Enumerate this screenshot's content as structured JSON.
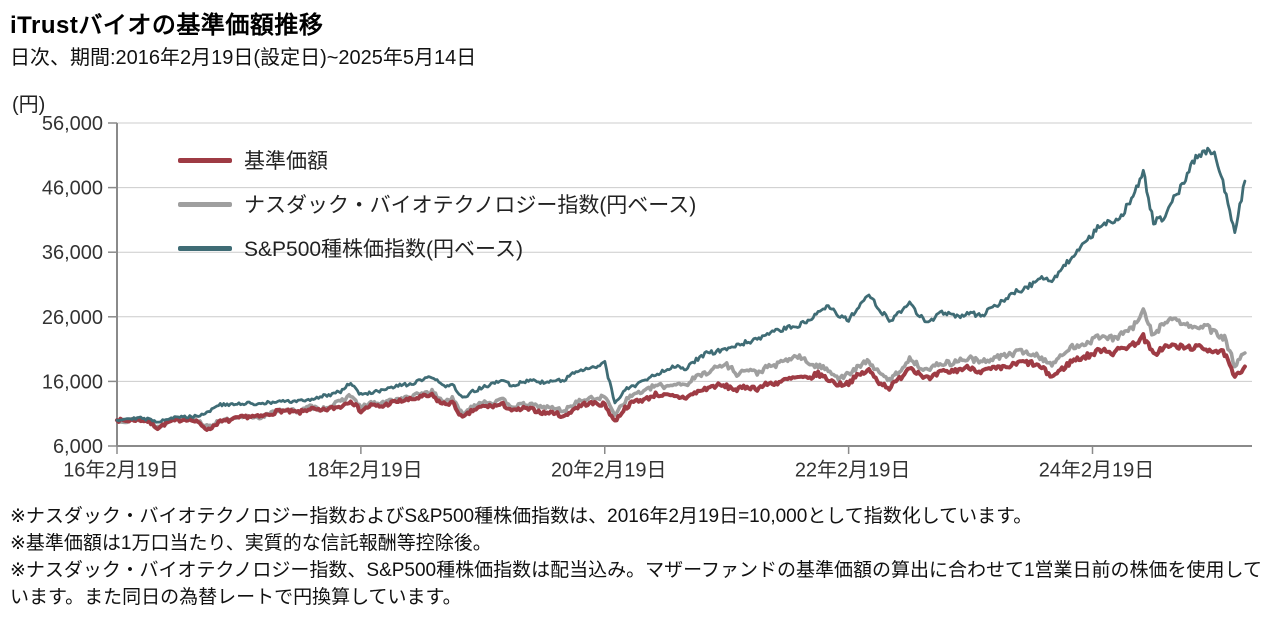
{
  "header": {
    "title": "iTrustバイオの基準価額推移",
    "subtitle": "日次、期間:2016年2月19日(設定日)~2025年5月14日"
  },
  "y_axis": {
    "unit": "(円)",
    "ticks": [
      {
        "value": 56000,
        "label": "56,000"
      },
      {
        "value": 46000,
        "label": "46,000"
      },
      {
        "value": 36000,
        "label": "36,000"
      },
      {
        "value": 26000,
        "label": "26,000"
      },
      {
        "value": 16000,
        "label": "16,000"
      },
      {
        "value": 6000,
        "label": "6,000"
      }
    ]
  },
  "x_axis": {
    "ticks": [
      {
        "month": 0,
        "label": "16年2月19日"
      },
      {
        "month": 24,
        "label": "18年2月19日"
      },
      {
        "month": 48,
        "label": "20年2月19日"
      },
      {
        "month": 72,
        "label": "22年2月19日"
      },
      {
        "month": 96,
        "label": "24年2月19日"
      }
    ]
  },
  "footnotes": [
    "※ナスダック・バイオテクノロジー指数およびS&P500種株価指数は、2016年2月19日=10,000として指数化しています。",
    "※基準価額は1万口当たり、実質的な信託報酬等控除後。",
    "※ナスダック・バイオテクノロジー指数、S&P500種株価指数は配当込み。マザーファンドの基準価額の算出に合わせて1営業日前の株価を使用しています。また同日の為替レートで円換算しています。"
  ],
  "chart_data": {
    "type": "line",
    "title": "iTrustバイオの基準価額推移",
    "xlabel": "",
    "ylabel": "円",
    "ylim": [
      6000,
      56000
    ],
    "x_start": "2016-02",
    "x_end": "2025-05",
    "x_freq": "monthly",
    "grid": "horizontal",
    "legend_position": "top-left-inside",
    "series": [
      {
        "name": "基準価額",
        "color": "#9e3b44",
        "values": [
          10000,
          9900,
          10100,
          9850,
          8800,
          9650,
          10000,
          10200,
          9600,
          8500,
          9700,
          9950,
          10350,
          10600,
          10500,
          10900,
          11500,
          11300,
          11200,
          11800,
          11400,
          11800,
          12100,
          13100,
          11400,
          12300,
          12100,
          12700,
          13000,
          13200,
          13600,
          13800,
          12500,
          12700,
          10300,
          11500,
          12100,
          12200,
          12400,
          11400,
          11800,
          11600,
          11100,
          11200,
          10500,
          11800,
          12500,
          12600,
          12400,
          9800,
          11900,
          13000,
          13200,
          14000,
          13800,
          13600,
          13500,
          14300,
          14900,
          15400,
          15200,
          14700,
          15200,
          14900,
          15600,
          15800,
          16300,
          16600,
          16400,
          17200,
          16300,
          15500,
          15800,
          17000,
          17700,
          15900,
          15000,
          16400,
          18300,
          17200,
          16300,
          17400,
          17500,
          17900,
          18200,
          17500,
          17900,
          18000,
          18400,
          19000,
          18800,
          18100,
          16700,
          17900,
          19200,
          19700,
          20200,
          21100,
          20400,
          21200,
          21700,
          22900,
          20100,
          21300,
          21500,
          21200,
          21300,
          21100,
          20800,
          20300,
          16500,
          18300
        ]
      },
      {
        "name": "ナスダック・バイオテクノロジー指数(円ベース)",
        "color": "#9f9f9f",
        "values": [
          10000,
          9900,
          10150,
          9950,
          8900,
          9800,
          10200,
          10300,
          9900,
          8900,
          9900,
          10050,
          10300,
          10550,
          10450,
          10900,
          11700,
          11500,
          11400,
          12100,
          11700,
          12200,
          12900,
          13900,
          11900,
          12700,
          12500,
          13100,
          13300,
          13600,
          14200,
          14400,
          13000,
          13300,
          10900,
          12200,
          12900,
          12700,
          13100,
          12100,
          12400,
          12300,
          12000,
          11900,
          11400,
          12600,
          13200,
          13400,
          13600,
          11000,
          13000,
          14200,
          14500,
          15400,
          15200,
          15700,
          15500,
          16700,
          17400,
          18200,
          18600,
          17200,
          17800,
          17300,
          18200,
          18600,
          19400,
          19900,
          18900,
          18300,
          17900,
          16500,
          17100,
          18300,
          19200,
          17200,
          16200,
          17600,
          19500,
          18300,
          17800,
          18900,
          18800,
          19300,
          19600,
          18900,
          19500,
          19900,
          20200,
          20700,
          20300,
          19600,
          18700,
          19900,
          21400,
          21800,
          22400,
          23300,
          22500,
          23500,
          24300,
          26800,
          23000,
          25200,
          25600,
          24900,
          24200,
          24700,
          23500,
          22700,
          18500,
          20400
        ]
      },
      {
        "name": "S&P500種株価指数(円ベース)",
        "color": "#3f6c75",
        "values": [
          10000,
          10300,
          10350,
          10150,
          9800,
          10250,
          10450,
          10550,
          10700,
          11300,
          12400,
          12350,
          12500,
          12600,
          12550,
          12700,
          12850,
          12900,
          12950,
          13200,
          13600,
          14000,
          14500,
          15800,
          13900,
          14300,
          14500,
          15000,
          15400,
          15600,
          16200,
          16700,
          15300,
          15600,
          13300,
          14400,
          15100,
          15600,
          16200,
          15200,
          16000,
          16400,
          15700,
          16100,
          16300,
          17300,
          17700,
          18300,
          18800,
          12700,
          14700,
          15400,
          16300,
          17000,
          17900,
          18400,
          18000,
          19300,
          20300,
          20600,
          21000,
          21500,
          22100,
          22400,
          23300,
          23800,
          24300,
          24600,
          25400,
          26900,
          27800,
          26300,
          25500,
          27500,
          29300,
          27300,
          25300,
          26800,
          28000,
          26000,
          25200,
          26800,
          26500,
          25900,
          26800,
          26000,
          27400,
          28200,
          29500,
          30200,
          31000,
          32000,
          31600,
          33500,
          35200,
          37400,
          38800,
          40700,
          40200,
          42000,
          44800,
          48400,
          40500,
          41500,
          44200,
          46800,
          50200,
          51800,
          51200,
          45800,
          39200,
          47000
        ]
      }
    ]
  }
}
